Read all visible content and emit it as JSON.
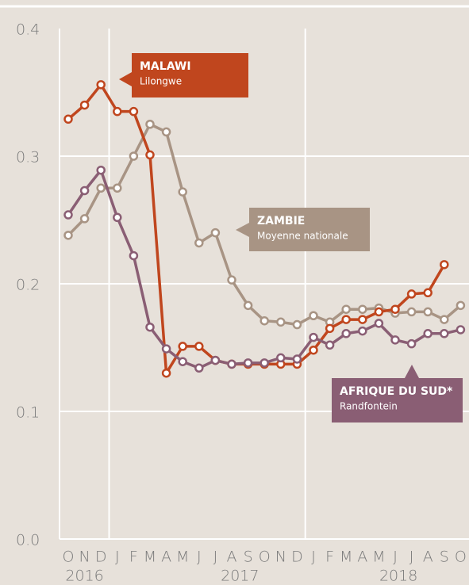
{
  "chart_data": {
    "type": "line",
    "categories": [
      "O",
      "N",
      "D",
      "J",
      "F",
      "M",
      "A",
      "M",
      "J",
      "J",
      "A",
      "S",
      "O",
      "N",
      "D",
      "J",
      "F",
      "M",
      "A",
      "M",
      "J",
      "J",
      "A",
      "S",
      "O"
    ],
    "year_labels": [
      "2016",
      "2017",
      "2018"
    ],
    "ylim": [
      0,
      0.4
    ],
    "yticks": [
      {
        "value": 0,
        "label": "0.0"
      },
      0.1,
      0.2,
      0.3,
      0.4
    ],
    "series": [
      {
        "name": "ZAMBIE",
        "sublabel": "Moyenne nationale",
        "color": "#a89484",
        "values": [
          0.238,
          0.251,
          0.275,
          0.275,
          0.3,
          0.325,
          0.319,
          0.272,
          0.232,
          0.24,
          0.203,
          0.183,
          0.171,
          0.17,
          0.168,
          0.175,
          0.17,
          0.18,
          0.18,
          0.181,
          0.177,
          0.178,
          0.178,
          0.172,
          0.183
        ]
      },
      {
        "name": "MALAWI",
        "sublabel": "Lilongwe",
        "color": "#c0461e",
        "values": [
          0.329,
          0.34,
          0.356,
          0.335,
          0.335,
          0.301,
          0.13,
          0.151,
          0.151,
          0.14,
          0.137,
          0.137,
          0.137,
          0.137,
          0.137,
          0.148,
          0.165,
          0.172,
          0.172,
          0.178,
          0.18,
          0.192,
          0.193,
          0.215,
          null
        ]
      },
      {
        "name": "AFRIQUE DU SUD*",
        "sublabel": "Randfontein",
        "color": "#8a5e74",
        "values": [
          0.254,
          0.273,
          0.289,
          0.252,
          0.222,
          0.166,
          0.149,
          0.139,
          0.134,
          0.14,
          0.137,
          0.138,
          0.138,
          0.142,
          0.141,
          0.158,
          0.152,
          0.161,
          0.163,
          0.169,
          0.156,
          0.153,
          0.161,
          0.161,
          0.164
        ]
      }
    ]
  }
}
